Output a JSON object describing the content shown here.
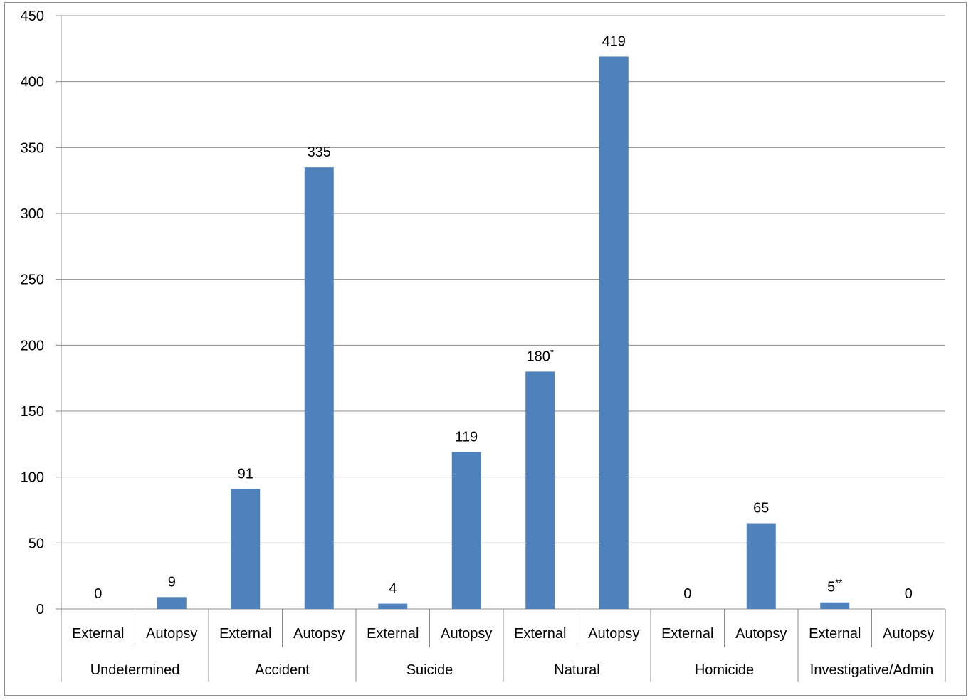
{
  "chart_data": {
    "type": "bar",
    "title": "",
    "xlabel": "",
    "ylabel": "",
    "ylim": [
      0,
      450
    ],
    "yticks": [
      0,
      50,
      100,
      150,
      200,
      250,
      300,
      350,
      400,
      450
    ],
    "grid": true,
    "legend": "none",
    "bar_color": "#4f81bd",
    "groups": [
      "Undetermined",
      "Accident",
      "Suicide",
      "Natural",
      "Homicide",
      "Investigative/Admin"
    ],
    "subcategories": [
      "External",
      "Autopsy"
    ],
    "bars": [
      {
        "group": "Undetermined",
        "sub": "External",
        "value": 0,
        "label": "0",
        "mark": ""
      },
      {
        "group": "Undetermined",
        "sub": "Autopsy",
        "value": 9,
        "label": "9",
        "mark": ""
      },
      {
        "group": "Accident",
        "sub": "External",
        "value": 91,
        "label": "91",
        "mark": ""
      },
      {
        "group": "Accident",
        "sub": "Autopsy",
        "value": 335,
        "label": "335",
        "mark": ""
      },
      {
        "group": "Suicide",
        "sub": "External",
        "value": 4,
        "label": "4",
        "mark": ""
      },
      {
        "group": "Suicide",
        "sub": "Autopsy",
        "value": 119,
        "label": "119",
        "mark": ""
      },
      {
        "group": "Natural",
        "sub": "External",
        "value": 180,
        "label": "180",
        "mark": "*"
      },
      {
        "group": "Natural",
        "sub": "Autopsy",
        "value": 419,
        "label": "419",
        "mark": ""
      },
      {
        "group": "Homicide",
        "sub": "External",
        "value": 0,
        "label": "0",
        "mark": ""
      },
      {
        "group": "Homicide",
        "sub": "Autopsy",
        "value": 65,
        "label": "65",
        "mark": ""
      },
      {
        "group": "Investigative/Admin",
        "sub": "External",
        "value": 5,
        "label": "5",
        "mark": "**"
      },
      {
        "group": "Investigative/Admin",
        "sub": "Autopsy",
        "value": 0,
        "label": "0",
        "mark": ""
      }
    ]
  }
}
